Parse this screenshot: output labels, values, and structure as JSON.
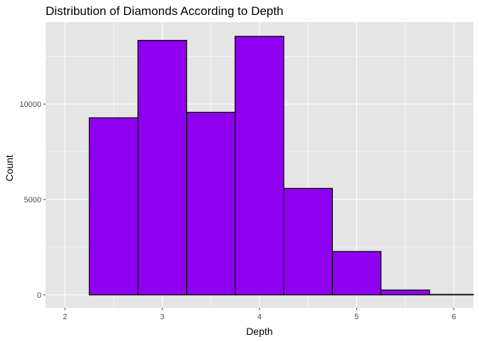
{
  "chart_data": {
    "type": "bar",
    "title": "Distribution of Diamonds According to Depth",
    "xlabel": "Depth",
    "ylabel": "Count",
    "bins": [
      {
        "x0": 1.75,
        "x1": 2.25,
        "count": 0
      },
      {
        "x0": 2.25,
        "x1": 2.75,
        "count": 9280
      },
      {
        "x0": 2.75,
        "x1": 3.25,
        "count": 13340
      },
      {
        "x0": 3.25,
        "x1": 3.75,
        "count": 9570
      },
      {
        "x0": 3.75,
        "x1": 4.25,
        "count": 13550
      },
      {
        "x0": 4.25,
        "x1": 4.75,
        "count": 5580
      },
      {
        "x0": 4.75,
        "x1": 5.25,
        "count": 2270
      },
      {
        "x0": 5.25,
        "x1": 5.75,
        "count": 250
      },
      {
        "x0": 5.75,
        "x1": 6.25,
        "count": 20
      }
    ],
    "xlim": [
      1.8,
      6.2
    ],
    "ylim": [
      -680,
      14300
    ],
    "x_ticks": [
      "2",
      "3",
      "4",
      "5",
      "6"
    ],
    "y_ticks": [
      "0",
      "5000",
      "10000"
    ],
    "grid": true,
    "colors": {
      "bar_fill": "#9000F0",
      "bar_stroke": "#000000",
      "panel_background": "#E5E5E5",
      "grid": "#FFFFFF"
    }
  }
}
